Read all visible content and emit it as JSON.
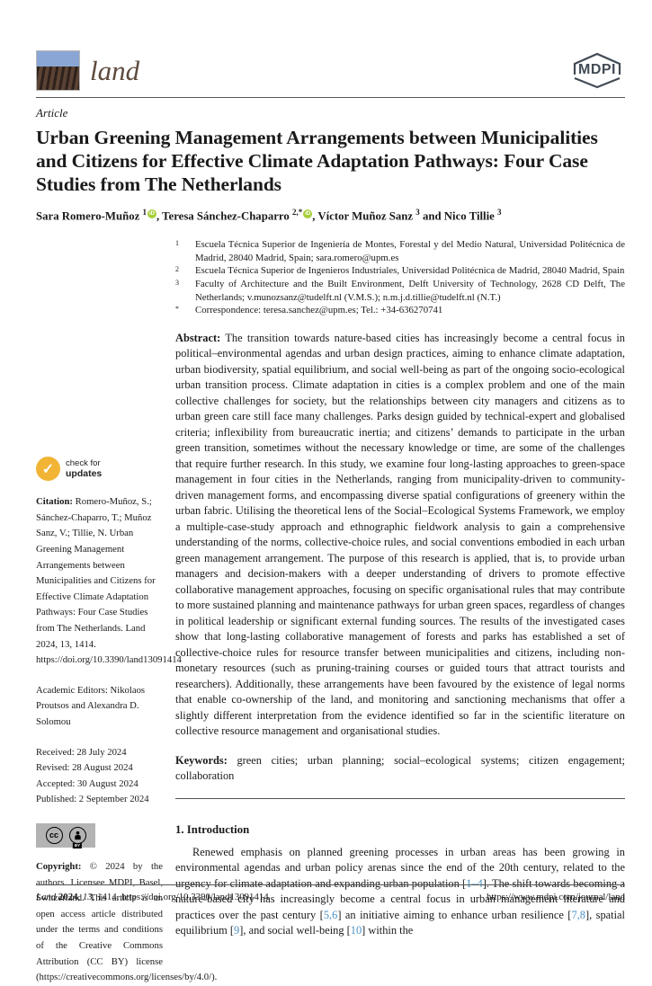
{
  "colors": {
    "ref_blue": "#4a90c4",
    "orcid_green": "#a6ce39",
    "badge_orange": "#f1b434",
    "logo_sky": "#8aa6d4",
    "logo_field": "#4a372b"
  },
  "header": {
    "journal_name": "land",
    "publisher_logo": "MDPI"
  },
  "article": {
    "type_label": "Article",
    "title": "Urban Greening Management Arrangements between Municipalities and Citizens for Effective Climate Adaptation Pathways: Four Case Studies from The Netherlands",
    "authors": [
      {
        "pre": "",
        "name": "Sara Romero-Muñoz",
        "sup": "1",
        "orcid": true
      },
      {
        "pre": ", ",
        "name": "Teresa Sánchez-Chaparro",
        "sup": "2,*",
        "orcid": true
      },
      {
        "pre": ", ",
        "name": "Víctor Muñoz Sanz",
        "sup": "3",
        "orcid": false
      },
      {
        "pre": " and ",
        "name": "Nico Tillie",
        "sup": "3",
        "orcid": false
      }
    ],
    "affiliations": [
      {
        "marker": "1",
        "text": "Escuela Técnica Superior de Ingeniería de Montes, Forestal y del Medio Natural, Universidad Politécnica de Madrid, 28040 Madrid, Spain; sara.romero@upm.es"
      },
      {
        "marker": "2",
        "text": "Escuela Técnica Superior de Ingenieros Industriales, Universidad Politécnica de Madrid, 28040 Madrid, Spain"
      },
      {
        "marker": "3",
        "text": "Faculty of Architecture and the Built Environment, Delft University of Technology, 2628 CD Delft, The Netherlands; v.munozsanz@tudelft.nl (V.M.S.); n.m.j.d.tillie@tudelft.nl (N.T.)"
      },
      {
        "marker": "*",
        "text": "Correspondence: teresa.sanchez@upm.es; Tel.: +34-636270741"
      }
    ],
    "abstract_label": "Abstract:",
    "abstract_text": "The transition towards nature-based cities has increasingly become a central focus in political–environmental agendas and urban design practices, aiming to enhance climate adaptation, urban biodiversity, spatial equilibrium, and social well-being as part of the ongoing socio-ecological urban transition process. Climate adaptation in cities is a complex problem and one of the main collective challenges for society, but the relationships between city managers and citizens as to urban green care still face many challenges. Parks design guided by technical-expert and globalised criteria; inflexibility from bureaucratic inertia; and citizens’ demands to participate in the urban green transition, sometimes without the necessary knowledge or time, are some of the challenges that require further research. In this study, we examine four long-lasting approaches to green-space management in four cities in the Netherlands, ranging from municipality-driven to community-driven management forms, and encompassing diverse spatial configurations of greenery within the urban fabric. Utilising the theoretical lens of the Social–Ecological Systems Framework, we employ a multiple-case-study approach and ethnographic fieldwork analysis to gain a comprehensive understanding of the norms, collective-choice rules, and social conventions embodied in each urban green management arrangement. The purpose of this research is applied, that is, to provide urban managers and decision-makers with a deeper understanding of drivers to promote effective collaborative management approaches, focusing on specific organisational rules that may contribute to more sustained planning and maintenance pathways for urban green spaces, regardless of changes in political leadership or significant external funding sources. The results of the investigated cases show that long-lasting collaborative management of forests and parks has established a set of collective-choice rules for resource transfer between municipalities and citizens, including non-monetary resources (such as pruning-training courses or guided tours that attract tourists and researchers). Additionally, these arrangements have been favoured by the existence of legal norms that enable co-ownership of the land, and monitoring and sanctioning mechanisms that offer a slightly different interpretation from the evidence identified so far in the scientific literature on collective resource management and organisational studies.",
    "keywords_label": "Keywords:",
    "keywords_text": "green cities; urban planning; social–ecological systems; citizen engagement; collaboration"
  },
  "sidebar": {
    "check_updates_line1": "check for",
    "check_updates_line2": "updates",
    "citation_label": "Citation:",
    "citation_text": "Romero-Muñoz, S.; Sánchez-Chaparro, T.; Muñoz Sanz, V.; Tillie, N. Urban Greening Management Arrangements between Municipalities and Citizens for Effective Climate Adaptation Pathways: Four Case Studies from The Netherlands. Land 2024, 13, 1414. https://doi.org/10.3390/land13091414",
    "editors_text": "Academic Editors: Nikolaos Proutsos and Alexandra D. Solomou",
    "dates": [
      "Received: 28 July 2024",
      "Revised: 28 August 2024",
      "Accepted: 30 August 2024",
      "Published: 2 September 2024"
    ],
    "license_icon_left": "cc",
    "license_icon_right_label": "BY",
    "copyright_label": "Copyright:",
    "copyright_text": "© 2024 by the authors. Licensee MDPI, Basel, Switzerland. This article is an open access article distributed under the terms and conditions of the Creative Commons Attribution (CC BY) license (https://creativecommons.org/licenses/by/4.0/)."
  },
  "introduction": {
    "heading": "1. Introduction",
    "paragraph_segments": [
      {
        "text": "Renewed emphasis on planned greening processes in urban areas has been growing in environmental agendas and urban policy arenas since the end of the 20th century, related to the urgency for climate adaptation and expanding urban population [",
        "ref": false
      },
      {
        "text": "1–4",
        "ref": true
      },
      {
        "text": "]. The shift towards becoming a nature-based city has increasingly become a central focus in urban management literature and practices over the past century [",
        "ref": false
      },
      {
        "text": "5,6",
        "ref": true
      },
      {
        "text": "] an initiative aiming to enhance urban resilience [",
        "ref": false
      },
      {
        "text": "7,8",
        "ref": true
      },
      {
        "text": "], spatial equilibrium [",
        "ref": false
      },
      {
        "text": "9",
        "ref": true
      },
      {
        "text": "], and social well-being [",
        "ref": false
      },
      {
        "text": "10",
        "ref": true
      },
      {
        "text": "] within the",
        "ref": false
      }
    ]
  },
  "footer": {
    "left_segments": [
      {
        "text": "Land ",
        "italic": true,
        "bold": false
      },
      {
        "text": "2024",
        "italic": false,
        "bold": true
      },
      {
        "text": ", ",
        "italic": false,
        "bold": false
      },
      {
        "text": "13",
        "italic": true,
        "bold": false
      },
      {
        "text": ", 1414. https://doi.org/10.3390/land13091414",
        "italic": false,
        "bold": false
      }
    ],
    "right_url": "https://www.mdpi.com/journal/land"
  }
}
